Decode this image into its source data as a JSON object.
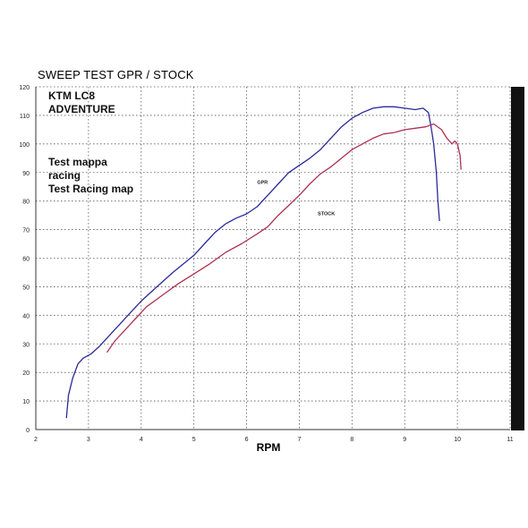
{
  "chart_data": {
    "type": "line",
    "title": "SWEEP TEST  GPR / STOCK",
    "annotation_lines_1": [
      "KTM LC8",
      "ADVENTURE"
    ],
    "annotation_lines_2": [
      "Test mappa",
      "racing",
      "Test Racing map"
    ],
    "xlabel": "RPM",
    "ylabel": "",
    "xlim": [
      2,
      11
    ],
    "ylim": [
      0,
      120
    ],
    "xticks": [
      2,
      3,
      4,
      5,
      6,
      7,
      8,
      9,
      10,
      11
    ],
    "yticks": [
      0,
      10,
      20,
      30,
      40,
      50,
      60,
      70,
      80,
      90,
      100,
      110,
      120
    ],
    "grid": true,
    "series": [
      {
        "name": "GPR",
        "color": "#2a2a9a",
        "points": [
          [
            2.58,
            4
          ],
          [
            2.62,
            12
          ],
          [
            2.7,
            18
          ],
          [
            2.8,
            23
          ],
          [
            2.9,
            25
          ],
          [
            3.05,
            26.5
          ],
          [
            3.2,
            29
          ],
          [
            3.4,
            33
          ],
          [
            3.6,
            37
          ],
          [
            3.8,
            41
          ],
          [
            4.0,
            45
          ],
          [
            4.3,
            50
          ],
          [
            4.6,
            55
          ],
          [
            4.8,
            58
          ],
          [
            5.0,
            61
          ],
          [
            5.2,
            65
          ],
          [
            5.4,
            69
          ],
          [
            5.6,
            72
          ],
          [
            5.8,
            74
          ],
          [
            6.0,
            75.5
          ],
          [
            6.2,
            78
          ],
          [
            6.4,
            82
          ],
          [
            6.6,
            86
          ],
          [
            6.8,
            90
          ],
          [
            7.0,
            92.5
          ],
          [
            7.2,
            95
          ],
          [
            7.4,
            98
          ],
          [
            7.6,
            102
          ],
          [
            7.8,
            106
          ],
          [
            8.0,
            109
          ],
          [
            8.2,
            111
          ],
          [
            8.4,
            112.5
          ],
          [
            8.6,
            113
          ],
          [
            8.8,
            113
          ],
          [
            9.0,
            112.5
          ],
          [
            9.2,
            112
          ],
          [
            9.35,
            112.5
          ],
          [
            9.45,
            111
          ],
          [
            9.5,
            106
          ],
          [
            9.55,
            100
          ],
          [
            9.6,
            90
          ],
          [
            9.63,
            80
          ],
          [
            9.66,
            73
          ]
        ]
      },
      {
        "name": "STOCK",
        "color": "#b03050",
        "points": [
          [
            3.35,
            27
          ],
          [
            3.5,
            31
          ],
          [
            3.7,
            35
          ],
          [
            3.9,
            39
          ],
          [
            4.1,
            43
          ],
          [
            4.4,
            47
          ],
          [
            4.7,
            51
          ],
          [
            5.0,
            54.5
          ],
          [
            5.3,
            58
          ],
          [
            5.6,
            62
          ],
          [
            5.9,
            65
          ],
          [
            6.2,
            68.5
          ],
          [
            6.4,
            71
          ],
          [
            6.6,
            75
          ],
          [
            6.8,
            78.5
          ],
          [
            7.0,
            82
          ],
          [
            7.2,
            86
          ],
          [
            7.4,
            89.5
          ],
          [
            7.6,
            92
          ],
          [
            7.8,
            95
          ],
          [
            8.0,
            98
          ],
          [
            8.2,
            100
          ],
          [
            8.4,
            102
          ],
          [
            8.6,
            103.5
          ],
          [
            8.8,
            104
          ],
          [
            9.0,
            105
          ],
          [
            9.2,
            105.5
          ],
          [
            9.4,
            106
          ],
          [
            9.55,
            107
          ],
          [
            9.7,
            105
          ],
          [
            9.8,
            102
          ],
          [
            9.9,
            100
          ],
          [
            9.95,
            101
          ],
          [
            10.0,
            100
          ],
          [
            10.05,
            96
          ],
          [
            10.07,
            91
          ]
        ]
      }
    ],
    "series_labels": [
      {
        "text": "GPR",
        "x": 6.2,
        "y": 86
      },
      {
        "text": "STOCK",
        "x": 7.35,
        "y": 75
      }
    ]
  }
}
